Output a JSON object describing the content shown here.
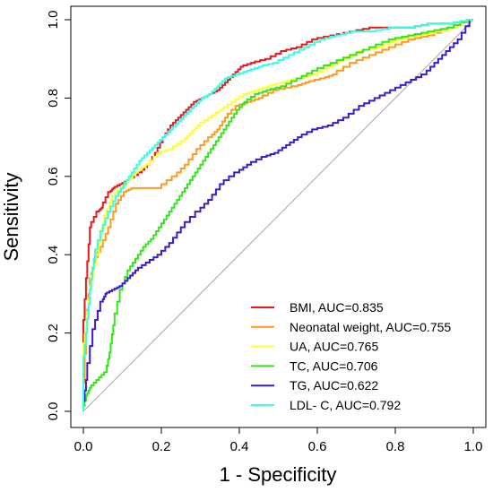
{
  "chart_data": {
    "type": "line",
    "title": "",
    "xlabel": "1 -  Specificity",
    "ylabel": "Sensitivity",
    "xlim": [
      0,
      1
    ],
    "ylim": [
      0,
      1
    ],
    "xticks": [
      "0.0",
      "0.2",
      "0.4",
      "0.6",
      "0.8",
      "1.0"
    ],
    "yticks": [
      "0.0",
      "0.2",
      "0.4",
      "0.6",
      "0.8",
      "1.0"
    ],
    "grid": false,
    "legend_position": "bottom-right",
    "reference_line": {
      "x": [
        0,
        1
      ],
      "y": [
        0,
        1
      ],
      "color": "#a6a6a6"
    },
    "series": [
      {
        "name": "BMI, AUC=0.835",
        "color": "#e41a1c",
        "x": [
          0.0,
          0.0,
          0.01,
          0.02,
          0.04,
          0.05,
          0.07,
          0.08,
          0.1,
          0.12,
          0.15,
          0.17,
          0.19,
          0.21,
          0.23,
          0.25,
          0.27,
          0.29,
          0.31,
          0.33,
          0.35,
          0.37,
          0.39,
          0.41,
          0.44,
          0.48,
          0.52,
          0.56,
          0.6,
          0.65,
          0.7,
          0.75,
          0.8,
          0.85,
          0.9,
          0.95,
          1.0
        ],
        "y": [
          0.0,
          0.18,
          0.34,
          0.47,
          0.51,
          0.52,
          0.56,
          0.57,
          0.58,
          0.59,
          0.61,
          0.63,
          0.66,
          0.7,
          0.73,
          0.75,
          0.77,
          0.79,
          0.8,
          0.81,
          0.82,
          0.84,
          0.86,
          0.88,
          0.89,
          0.9,
          0.92,
          0.93,
          0.95,
          0.96,
          0.97,
          0.98,
          0.98,
          0.98,
          0.99,
          0.99,
          1.0
        ]
      },
      {
        "name": "Neonatal weight, AUC=0.755",
        "color": "#ff9a1c",
        "x": [
          0.0,
          0.01,
          0.02,
          0.03,
          0.05,
          0.07,
          0.09,
          0.11,
          0.13,
          0.16,
          0.2,
          0.24,
          0.27,
          0.3,
          0.33,
          0.35,
          0.37,
          0.4,
          0.43,
          0.46,
          0.5,
          0.55,
          0.58,
          0.62,
          0.65,
          0.7,
          0.75,
          0.8,
          0.85,
          0.9,
          0.95,
          1.0
        ],
        "y": [
          0.0,
          0.22,
          0.34,
          0.38,
          0.42,
          0.47,
          0.53,
          0.56,
          0.57,
          0.57,
          0.57,
          0.6,
          0.63,
          0.67,
          0.7,
          0.72,
          0.75,
          0.78,
          0.79,
          0.8,
          0.82,
          0.83,
          0.84,
          0.85,
          0.86,
          0.89,
          0.91,
          0.93,
          0.95,
          0.96,
          0.98,
          1.0
        ]
      },
      {
        "name": "UA, AUC=0.765",
        "color": "#ffff33",
        "x": [
          0.0,
          0.0,
          0.01,
          0.02,
          0.04,
          0.06,
          0.08,
          0.1,
          0.12,
          0.14,
          0.17,
          0.2,
          0.23,
          0.26,
          0.28,
          0.3,
          0.33,
          0.36,
          0.39,
          0.42,
          0.45,
          0.48,
          0.52,
          0.56,
          0.6,
          0.64,
          0.68,
          0.72,
          0.77,
          0.82,
          0.87,
          0.92,
          0.96,
          1.0
        ],
        "y": [
          0.0,
          0.15,
          0.22,
          0.32,
          0.4,
          0.5,
          0.55,
          0.57,
          0.59,
          0.61,
          0.63,
          0.66,
          0.67,
          0.69,
          0.71,
          0.73,
          0.75,
          0.77,
          0.79,
          0.81,
          0.82,
          0.83,
          0.84,
          0.85,
          0.86,
          0.88,
          0.9,
          0.92,
          0.93,
          0.95,
          0.96,
          0.97,
          0.98,
          1.0
        ]
      },
      {
        "name": "TC, AUC=0.706",
        "color": "#33e61c",
        "x": [
          0.0,
          0.01,
          0.02,
          0.04,
          0.06,
          0.07,
          0.08,
          0.1,
          0.12,
          0.14,
          0.16,
          0.18,
          0.2,
          0.22,
          0.24,
          0.26,
          0.28,
          0.3,
          0.32,
          0.34,
          0.36,
          0.38,
          0.4,
          0.42,
          0.45,
          0.48,
          0.52,
          0.56,
          0.6,
          0.65,
          0.7,
          0.75,
          0.8,
          0.85,
          0.9,
          0.95,
          1.0
        ],
        "y": [
          0.0,
          0.04,
          0.06,
          0.08,
          0.1,
          0.15,
          0.22,
          0.31,
          0.36,
          0.39,
          0.42,
          0.44,
          0.47,
          0.5,
          0.53,
          0.56,
          0.59,
          0.62,
          0.65,
          0.68,
          0.71,
          0.74,
          0.77,
          0.79,
          0.81,
          0.82,
          0.83,
          0.85,
          0.87,
          0.89,
          0.91,
          0.93,
          0.95,
          0.96,
          0.97,
          0.98,
          1.0
        ]
      },
      {
        "name": "TG, AUC=0.622",
        "color": "#3b1ccc",
        "x": [
          0.0,
          0.01,
          0.03,
          0.05,
          0.06,
          0.08,
          0.1,
          0.12,
          0.14,
          0.17,
          0.2,
          0.23,
          0.26,
          0.3,
          0.33,
          0.36,
          0.4,
          0.43,
          0.47,
          0.5,
          0.53,
          0.56,
          0.6,
          0.64,
          0.68,
          0.72,
          0.76,
          0.8,
          0.84,
          0.88,
          0.91,
          0.94,
          0.97,
          1.0
        ],
        "y": [
          0.0,
          0.08,
          0.21,
          0.28,
          0.3,
          0.31,
          0.32,
          0.34,
          0.36,
          0.38,
          0.4,
          0.43,
          0.47,
          0.51,
          0.54,
          0.58,
          0.61,
          0.63,
          0.65,
          0.66,
          0.68,
          0.7,
          0.72,
          0.73,
          0.75,
          0.78,
          0.8,
          0.82,
          0.84,
          0.86,
          0.89,
          0.92,
          0.95,
          1.0
        ]
      },
      {
        "name": "LDL- C, AUC=0.792",
        "color": "#33ffe6",
        "x": [
          0.0,
          0.0,
          0.01,
          0.02,
          0.03,
          0.05,
          0.07,
          0.09,
          0.11,
          0.13,
          0.15,
          0.17,
          0.19,
          0.21,
          0.23,
          0.25,
          0.27,
          0.29,
          0.31,
          0.33,
          0.35,
          0.37,
          0.4,
          0.43,
          0.46,
          0.5,
          0.54,
          0.58,
          0.62,
          0.66,
          0.7,
          0.75,
          0.8,
          0.85,
          0.9,
          0.95,
          1.0
        ],
        "y": [
          0.0,
          0.11,
          0.2,
          0.31,
          0.39,
          0.46,
          0.51,
          0.55,
          0.58,
          0.61,
          0.64,
          0.66,
          0.68,
          0.7,
          0.72,
          0.74,
          0.76,
          0.78,
          0.8,
          0.81,
          0.83,
          0.85,
          0.86,
          0.87,
          0.88,
          0.89,
          0.91,
          0.93,
          0.95,
          0.96,
          0.97,
          0.97,
          0.98,
          0.98,
          0.99,
          0.99,
          1.0
        ]
      }
    ]
  }
}
